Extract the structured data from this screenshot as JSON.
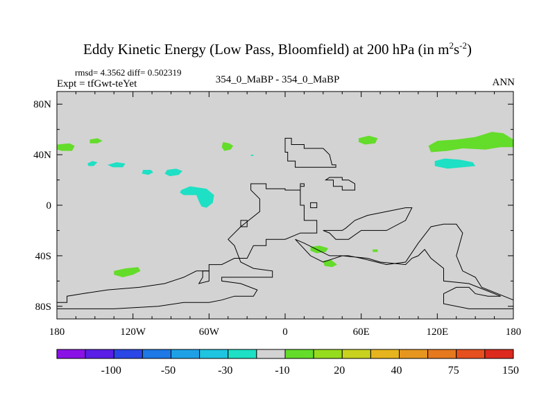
{
  "chart_data": {
    "type": "heatmap",
    "title": "Eddy Kinetic Energy (Low Pass, Bloomfield) at 200 hPa (in m",
    "title_unit_sup1": "2",
    "title_unit_mid": "s",
    "title_unit_sup2": "-2",
    "title_unit_end": ")",
    "stats_text": "rmsd= 4.3562  diff= 0.502319",
    "left_label": "Expt = tfGwt-teYet",
    "center_label": "354_0_MaBP - 354_0_MaBP",
    "right_label": "ANN",
    "xlim": [
      -180,
      180
    ],
    "ylim": [
      -90,
      90
    ],
    "x_ticks": [
      -180,
      -120,
      -60,
      0,
      60,
      120,
      180
    ],
    "x_tick_labels": [
      "180",
      "120W",
      "60W",
      "0",
      "60E",
      "120E",
      "180"
    ],
    "y_ticks": [
      80,
      40,
      0,
      -40,
      -80
    ],
    "y_tick_labels": [
      "80N",
      "40N",
      "0",
      "40S",
      "80S"
    ],
    "background_color": "#d3d3d3",
    "colorbar": {
      "colors": [
        "#8a12e6",
        "#5a1ee6",
        "#2a46e6",
        "#1e78e6",
        "#1ea0e6",
        "#1ec4e0",
        "#1ee0c4",
        "#d3d3d3",
        "#64dc2a",
        "#96dc1e",
        "#c8d21e",
        "#e6b41e",
        "#e6961e",
        "#e6781e",
        "#e6501e",
        "#dc2a1e"
      ],
      "labels": [
        "-100",
        "-50",
        "-30",
        "-10",
        "20",
        "40",
        "75",
        "150"
      ]
    },
    "patches": [
      {
        "category": "-10 to -5",
        "color": "#1ee0c4",
        "points": [
          [
            -156,
            33
          ],
          [
            -152,
            35
          ],
          [
            -148,
            34
          ],
          [
            -151,
            31
          ],
          [
            -155,
            31
          ]
        ]
      },
      {
        "category": "-10 to -5",
        "color": "#1ee0c4",
        "points": [
          [
            -140,
            32
          ],
          [
            -133,
            34
          ],
          [
            -126,
            33
          ],
          [
            -128,
            30
          ],
          [
            -136,
            30
          ]
        ]
      },
      {
        "category": "-10 to -5",
        "color": "#1ee0c4",
        "points": [
          [
            -112,
            28
          ],
          [
            -106,
            28
          ],
          [
            -104,
            26
          ],
          [
            -108,
            24
          ],
          [
            -113,
            25
          ]
        ]
      },
      {
        "category": "-10 to -5",
        "color": "#1ee0c4",
        "points": [
          [
            -93,
            28
          ],
          [
            -86,
            29
          ],
          [
            -81,
            27
          ],
          [
            -84,
            24
          ],
          [
            -91,
            23
          ],
          [
            -95,
            25
          ]
        ]
      },
      {
        "category": "-10 to -5",
        "color": "#1ee0c4",
        "points": [
          [
            -82,
            12
          ],
          [
            -75,
            15
          ],
          [
            -62,
            13
          ],
          [
            -56,
            8
          ],
          [
            -57,
            2
          ],
          [
            -62,
            -2
          ],
          [
            -66,
            -1
          ],
          [
            -68,
            3
          ],
          [
            -70,
            8
          ],
          [
            -80,
            8
          ],
          [
            -83,
            10
          ]
        ]
      },
      {
        "category": "-10 to -5",
        "color": "#1ee0c4",
        "points": [
          [
            -27,
            40
          ],
          [
            -25,
            40
          ],
          [
            -25,
            39
          ],
          [
            -27,
            39
          ]
        ]
      },
      {
        "category": "-10 to -5",
        "color": "#1ee0c4",
        "points": [
          [
            118,
            35
          ],
          [
            126,
            37
          ],
          [
            138,
            36
          ],
          [
            148,
            34
          ],
          [
            150,
            31
          ],
          [
            140,
            30
          ],
          [
            128,
            29
          ],
          [
            118,
            31
          ]
        ]
      },
      {
        "category": "5 to 10",
        "color": "#64dc2a",
        "points": [
          [
            -180,
            48
          ],
          [
            -170,
            49
          ],
          [
            -166,
            47
          ],
          [
            -168,
            43
          ],
          [
            -176,
            43
          ],
          [
            -180,
            44
          ]
        ]
      },
      {
        "category": "5 to 10",
        "color": "#64dc2a",
        "points": [
          [
            -154,
            52
          ],
          [
            -148,
            53
          ],
          [
            -144,
            51
          ],
          [
            -148,
            49
          ],
          [
            -154,
            49
          ]
        ]
      },
      {
        "category": "5 to 10",
        "color": "#64dc2a",
        "points": [
          [
            -49,
            50
          ],
          [
            -44,
            49
          ],
          [
            -41,
            47
          ],
          [
            -43,
            44
          ],
          [
            -48,
            43
          ],
          [
            -50,
            46
          ]
        ]
      },
      {
        "category": "5 to 10",
        "color": "#64dc2a",
        "points": [
          [
            58,
            53
          ],
          [
            66,
            55
          ],
          [
            73,
            53
          ],
          [
            71,
            49
          ],
          [
            63,
            48
          ],
          [
            58,
            50
          ]
        ]
      },
      {
        "category": "5 to 10",
        "color": "#64dc2a",
        "points": [
          [
            113,
            47
          ],
          [
            120,
            51
          ],
          [
            135,
            52
          ],
          [
            150,
            54
          ],
          [
            163,
            58
          ],
          [
            172,
            57
          ],
          [
            180,
            52
          ],
          [
            180,
            46
          ],
          [
            170,
            46
          ],
          [
            158,
            44
          ],
          [
            140,
            45
          ],
          [
            128,
            43
          ],
          [
            115,
            42
          ]
        ]
      },
      {
        "category": "5 to 10",
        "color": "#64dc2a",
        "points": [
          [
            20,
            -33
          ],
          [
            27,
            -32
          ],
          [
            34,
            -34
          ],
          [
            32,
            -37
          ],
          [
            25,
            -38
          ],
          [
            20,
            -36
          ]
        ]
      },
      {
        "category": "5 to 10",
        "color": "#64dc2a",
        "points": [
          [
            30,
            -44
          ],
          [
            36,
            -43
          ],
          [
            41,
            -47
          ],
          [
            37,
            -49
          ],
          [
            31,
            -48
          ]
        ]
      },
      {
        "category": "5 to 10",
        "color": "#64dc2a",
        "points": [
          [
            69,
            -35
          ],
          [
            73,
            -35
          ],
          [
            73,
            -37
          ],
          [
            69,
            -37
          ]
        ]
      },
      {
        "category": "5 to 10",
        "color": "#64dc2a",
        "points": [
          [
            -135,
            -52
          ],
          [
            -126,
            -50
          ],
          [
            -116,
            -49
          ],
          [
            -114,
            -52
          ],
          [
            -120,
            -55
          ],
          [
            -128,
            -57
          ],
          [
            -135,
            -55
          ]
        ]
      }
    ],
    "outlines": [
      {
        "category": "paleo-coastline",
        "points": [
          [
            0,
            53
          ],
          [
            5,
            53
          ],
          [
            5,
            48
          ],
          [
            15,
            48
          ],
          [
            15,
            45
          ],
          [
            30,
            45
          ],
          [
            35,
            40
          ],
          [
            37,
            32
          ],
          [
            40,
            32
          ],
          [
            40,
            30
          ],
          [
            8,
            30
          ],
          [
            8,
            35
          ],
          [
            2,
            35
          ],
          [
            2,
            42
          ],
          [
            0,
            42
          ]
        ]
      },
      {
        "category": "paleo-coastline",
        "points": [
          [
            -27,
            17
          ],
          [
            -15,
            17
          ],
          [
            -15,
            13
          ],
          [
            0,
            13
          ],
          [
            0,
            12
          ],
          [
            12,
            12
          ],
          [
            12,
            15
          ],
          [
            15,
            15
          ],
          [
            15,
            17
          ],
          [
            12,
            17
          ],
          [
            12,
            0
          ],
          [
            15,
            0
          ],
          [
            15,
            -12
          ],
          [
            25,
            -12
          ],
          [
            25,
            -22
          ],
          [
            12,
            -22
          ],
          [
            0,
            -27
          ],
          [
            -15,
            -27
          ],
          [
            -15,
            -32
          ],
          [
            -25,
            -32
          ],
          [
            -30,
            -42
          ],
          [
            -40,
            -42
          ],
          [
            -50,
            -47
          ],
          [
            -60,
            -47
          ],
          [
            -60,
            -52
          ],
          [
            -70,
            -52
          ],
          [
            -80,
            -57
          ],
          [
            -95,
            -62
          ],
          [
            -115,
            -65
          ],
          [
            -140,
            -67
          ],
          [
            -160,
            -70
          ],
          [
            -172,
            -72
          ],
          [
            -172,
            -77
          ],
          [
            -180,
            -77
          ],
          [
            -180,
            -82
          ],
          [
            -135,
            -82
          ],
          [
            -100,
            -80
          ],
          [
            -80,
            -77
          ],
          [
            -60,
            -77
          ],
          [
            -50,
            -75
          ],
          [
            -40,
            -72
          ],
          [
            -25,
            -72
          ],
          [
            -22,
            -67
          ],
          [
            -35,
            -62
          ],
          [
            -50,
            -60
          ],
          [
            -50,
            -57
          ],
          [
            -30,
            -57
          ],
          [
            -10,
            -57
          ],
          [
            -10,
            -52
          ],
          [
            -25,
            -50
          ],
          [
            -35,
            -45
          ],
          [
            -40,
            -32
          ],
          [
            -45,
            -27
          ],
          [
            -35,
            -17
          ],
          [
            -20,
            -5
          ],
          [
            -20,
            5
          ],
          [
            -27,
            12
          ]
        ]
      },
      {
        "category": "paleo-coastline",
        "points": [
          [
            -65,
            -52
          ],
          [
            -60,
            -52
          ],
          [
            -60,
            -60
          ],
          [
            -68,
            -62
          ],
          [
            -65,
            -57
          ]
        ]
      },
      {
        "category": "paleo-coastline",
        "points": [
          [
            -35,
            -12
          ],
          [
            -30,
            -12
          ],
          [
            -30,
            -17
          ],
          [
            -35,
            -17
          ]
        ]
      },
      {
        "category": "paleo-coastline",
        "points": [
          [
            20,
            2
          ],
          [
            25,
            2
          ],
          [
            25,
            -2
          ],
          [
            20,
            -2
          ]
        ]
      },
      {
        "category": "paleo-coastline",
        "points": [
          [
            32,
            20
          ],
          [
            38,
            20
          ],
          [
            38,
            15
          ],
          [
            45,
            15
          ],
          [
            45,
            12
          ],
          [
            55,
            12
          ],
          [
            55,
            17
          ],
          [
            50,
            20
          ],
          [
            45,
            20
          ],
          [
            45,
            22
          ],
          [
            40,
            22
          ],
          [
            35,
            22
          ]
        ]
      },
      {
        "category": "paleo-coastline",
        "points": [
          [
            30,
            -20
          ],
          [
            45,
            -20
          ],
          [
            48,
            -18
          ],
          [
            55,
            -12
          ],
          [
            65,
            -8
          ],
          [
            80,
            -5
          ],
          [
            95,
            -2
          ],
          [
            100,
            -2
          ],
          [
            95,
            -12
          ],
          [
            80,
            -20
          ],
          [
            60,
            -20
          ],
          [
            50,
            -27
          ],
          [
            40,
            -27
          ],
          [
            35,
            -22
          ]
        ]
      },
      {
        "category": "paleo-coastline",
        "points": [
          [
            8,
            -27
          ],
          [
            15,
            -30
          ],
          [
            35,
            -40
          ],
          [
            50,
            -40
          ],
          [
            60,
            -42
          ],
          [
            80,
            -47
          ],
          [
            95,
            -45
          ],
          [
            105,
            -30
          ],
          [
            115,
            -17
          ],
          [
            125,
            -15
          ],
          [
            135,
            -15
          ],
          [
            140,
            -22
          ],
          [
            135,
            -40
          ],
          [
            140,
            -52
          ],
          [
            150,
            -57
          ],
          [
            155,
            -65
          ],
          [
            180,
            -75
          ],
          [
            180,
            -82
          ],
          [
            145,
            -82
          ],
          [
            125,
            -78
          ],
          [
            125,
            -70
          ],
          [
            135,
            -65
          ],
          [
            145,
            -65
          ],
          [
            150,
            -70
          ],
          [
            160,
            -72
          ],
          [
            170,
            -72
          ],
          [
            160,
            -68
          ],
          [
            145,
            -62
          ],
          [
            125,
            -60
          ],
          [
            125,
            -50
          ],
          [
            115,
            -42
          ],
          [
            110,
            -35
          ],
          [
            105,
            -40
          ],
          [
            100,
            -42
          ],
          [
            95,
            -47
          ],
          [
            75,
            -45
          ],
          [
            65,
            -42
          ],
          [
            45,
            -40
          ],
          [
            30,
            -45
          ],
          [
            20,
            -40
          ]
        ]
      }
    ]
  }
}
